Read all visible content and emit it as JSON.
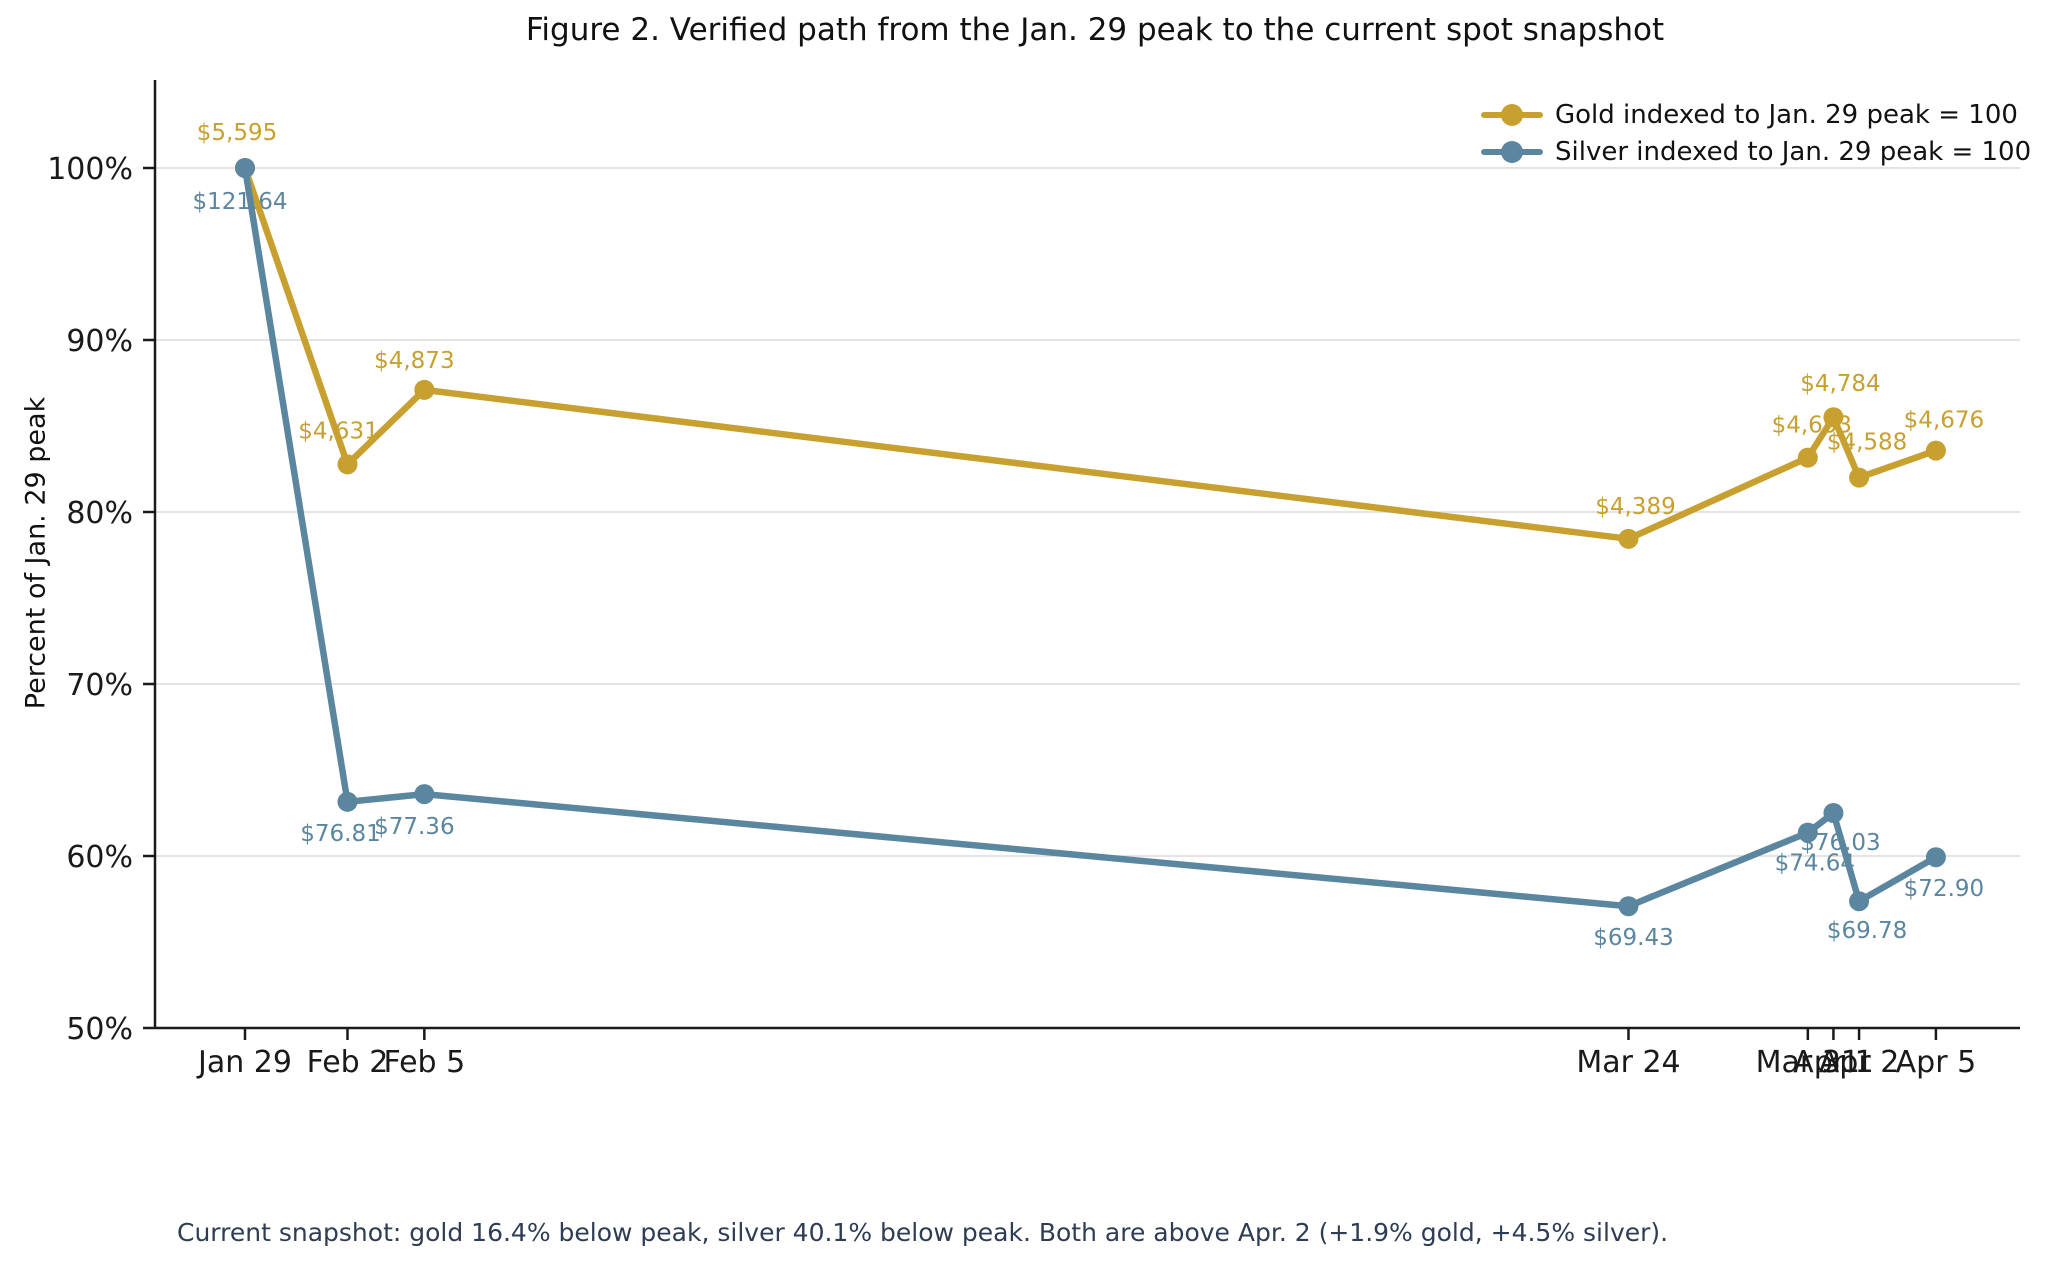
{
  "figure": {
    "title": "Figure 2. Verified path from the Jan. 29 peak to the current spot snapshot",
    "footer": "Current snapshot: gold 16.4% below peak, silver 40.1% below peak. Both are above Apr. 2 (+1.9% gold, +4.5% silver)."
  },
  "colors": {
    "gold": "#C7A02F",
    "silver": "#5B86A0",
    "grid": "#DCDCDC",
    "axis": "#1A1A1A",
    "tick_text": "#1A1A1A",
    "footer_text": "#2E3D54"
  },
  "chart_data": {
    "type": "line",
    "title": "Figure 2. Verified path from the Jan. 29 peak to the current spot snapshot",
    "xlabel": "",
    "ylabel": "Percent of Jan. 29 peak",
    "ylim": [
      50,
      105
    ],
    "grid": "horizontal-only",
    "legend_position": "upper-right",
    "x_categories": [
      "Jan 29",
      "Feb 2",
      "Feb 5",
      "Mar 24",
      "Mar 31",
      "Apr 1",
      "Apr 2",
      "Apr 5"
    ],
    "x_day_offsets": [
      0,
      4,
      7,
      54,
      61,
      62,
      63,
      66
    ],
    "y_ticks": {
      "values": [
        50,
        60,
        70,
        80,
        90,
        100
      ],
      "labels": [
        "50%",
        "60%",
        "70%",
        "80%",
        "90%",
        "100%"
      ]
    },
    "series": [
      {
        "name": "Gold indexed to Jan. 29 peak = 100",
        "color": "#C7A02F",
        "peak_price_usd": 5595,
        "prices_usd": [
          5595,
          4631,
          4873,
          4389,
          4653,
          4784,
          4588,
          4676
        ],
        "index_pct": [
          100,
          82.77,
          87.1,
          78.44,
          83.16,
          85.51,
          82.0,
          83.57
        ],
        "point_labels": [
          "$5,595",
          "$4,631",
          "$4,873",
          "$4,389",
          "$4,653",
          "$4,784",
          "$4,588",
          "$4,676"
        ]
      },
      {
        "name": "Silver indexed to Jan. 29 peak = 100",
        "color": "#5B86A0",
        "peak_price_usd": 121.64,
        "prices_usd": [
          121.64,
          76.81,
          77.36,
          69.43,
          74.64,
          76.03,
          69.78,
          72.9
        ],
        "index_pct": [
          100,
          63.15,
          63.6,
          57.08,
          61.36,
          62.5,
          57.37,
          59.93
        ],
        "point_labels": [
          "$121.64",
          "$76.81",
          "$77.36",
          "$69.43",
          "$74.64",
          "$76.03",
          "$69.78",
          "$72.90"
        ]
      }
    ]
  }
}
